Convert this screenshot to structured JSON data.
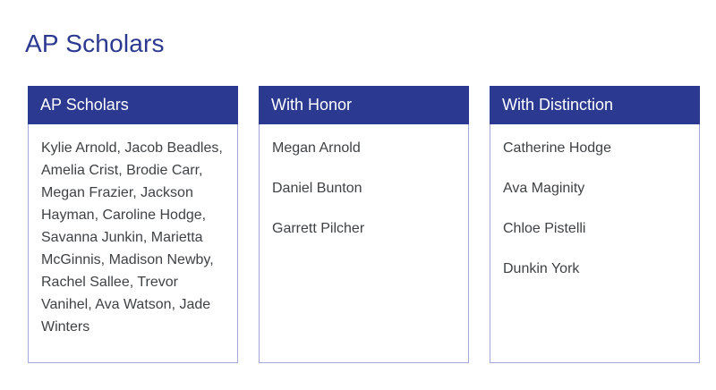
{
  "page": {
    "title": "AP Scholars"
  },
  "colors": {
    "primary_blue": "#2b3990",
    "card_border": "#a2a9d8",
    "header_text": "#ffffff",
    "body_text": "#3f4245",
    "background": "#ffffff"
  },
  "cards": [
    {
      "header": "AP Scholars",
      "layout": "paragraph",
      "names": [
        "Kylie Arnold",
        "Jacob Beadles",
        "Amelia Crist",
        "Brodie Carr",
        "Megan Frazier",
        "Jackson Hayman",
        "Caroline Hodge",
        "Savanna Junkin",
        "Marietta McGinnis",
        "Madison Newby",
        "Rachel Sallee",
        "Trevor Vanihel",
        "Ava Watson",
        "Jade Winters"
      ]
    },
    {
      "header": "With Honor",
      "layout": "stacked",
      "names": [
        "Megan Arnold",
        "Daniel Bunton",
        "Garrett Pilcher"
      ]
    },
    {
      "header": "With Distinction",
      "layout": "stacked",
      "names": [
        "Catherine Hodge",
        "Ava Maginity",
        "Chloe Pistelli",
        "Dunkin York"
      ]
    }
  ]
}
